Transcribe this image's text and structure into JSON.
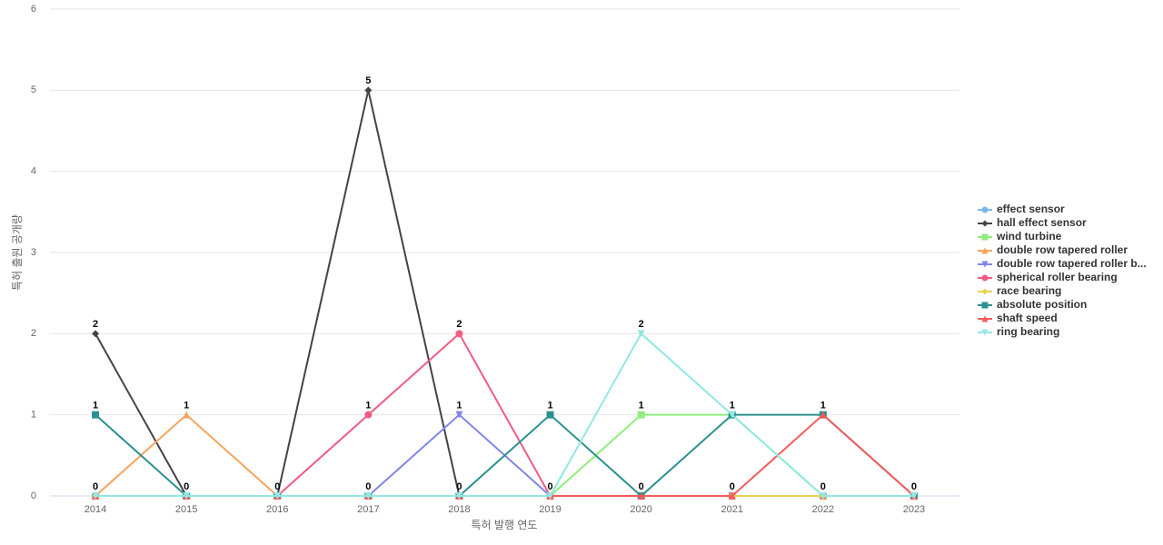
{
  "chart_data": {
    "type": "line",
    "x_label": "특허 발행 연도",
    "y_label": "특허 출원 공개량",
    "categories": [
      "2014",
      "2015",
      "2016",
      "2017",
      "2018",
      "2019",
      "2020",
      "2021",
      "2022",
      "2023"
    ],
    "ylim": [
      0,
      6
    ],
    "yticks": [
      0,
      1,
      2,
      3,
      4,
      5,
      6
    ],
    "grid": true,
    "series": [
      {
        "name": "effect sensor",
        "color": "#7cb5ec",
        "values": [
          0,
          0,
          0,
          0,
          0,
          0,
          0,
          0,
          0,
          0
        ]
      },
      {
        "name": "hall effect sensor",
        "color": "#434348",
        "values": [
          2,
          0,
          0,
          5,
          0,
          0,
          0,
          0,
          0,
          0
        ]
      },
      {
        "name": "wind turbine",
        "color": "#90ed7d",
        "values": [
          0,
          0,
          0,
          0,
          0,
          0,
          1,
          1,
          0,
          0
        ]
      },
      {
        "name": "double row tapered roller",
        "color": "#f7a35c",
        "values": [
          0,
          1,
          0,
          0,
          0,
          0,
          0,
          0,
          0,
          0
        ]
      },
      {
        "name": "double row tapered roller b...",
        "color": "#8085e9",
        "values": [
          0,
          0,
          0,
          0,
          1,
          0,
          0,
          0,
          0,
          0
        ]
      },
      {
        "name": "spherical roller bearing",
        "color": "#f15c80",
        "values": [
          0,
          0,
          0,
          1,
          2,
          0,
          0,
          0,
          0,
          0
        ]
      },
      {
        "name": "race bearing",
        "color": "#e4d354",
        "values": [
          0,
          0,
          0,
          0,
          0,
          0,
          0,
          0,
          0,
          0
        ]
      },
      {
        "name": "absolute position",
        "color": "#2b908f",
        "values": [
          1,
          0,
          0,
          0,
          0,
          1,
          0,
          1,
          1,
          0
        ]
      },
      {
        "name": "shaft speed",
        "color": "#f45b5b",
        "values": [
          0,
          0,
          0,
          0,
          0,
          0,
          0,
          0,
          1,
          0
        ]
      },
      {
        "name": "ring bearing",
        "color": "#91e8e1",
        "values": [
          0,
          0,
          0,
          0,
          0,
          0,
          2,
          1,
          0,
          0
        ]
      }
    ]
  }
}
